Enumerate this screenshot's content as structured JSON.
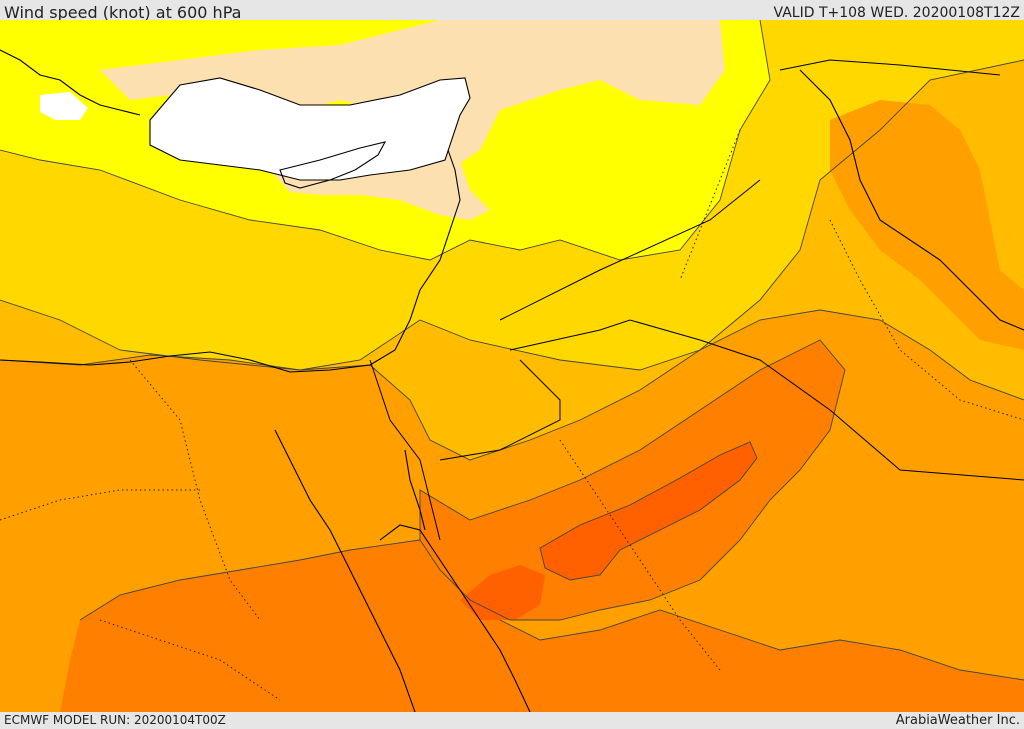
{
  "header": {
    "title": "Wind speed (knot) at 600 hPa",
    "valid": "VALID T+108 WED. 20200108T12Z"
  },
  "footer": {
    "model_run": "ECMWF MODEL RUN: 20200104T00Z",
    "credit": "ArabiaWeather Inc."
  },
  "colors": {
    "sea": "#ffffff",
    "pale": "#fde0b0",
    "yellow": "#ffff00",
    "gold": "#ffd800",
    "amber": "#ffbc00",
    "orange": "#ffa000",
    "dark_orange": "#ff8000",
    "deep_orange": "#ff6000",
    "boundary": "#000000"
  }
}
